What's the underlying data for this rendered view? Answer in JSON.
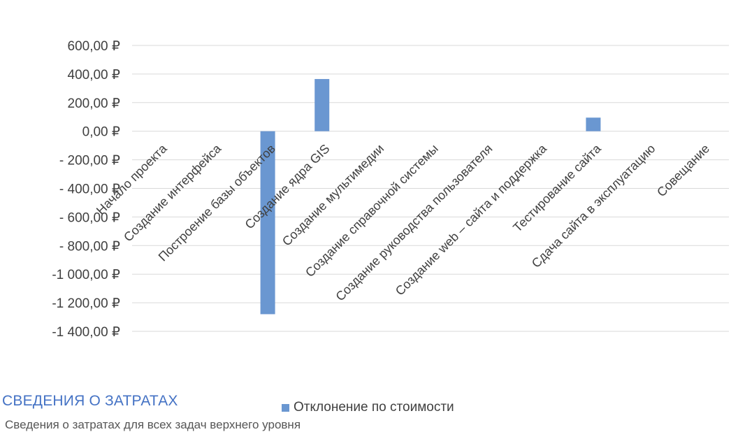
{
  "chart_data": {
    "type": "bar",
    "categories": [
      "Начало проекта",
      "Создание интерфейса",
      "Построение базы объектов",
      "Создание ядра GIS",
      "Создание мультимедии",
      "Создание справочной системы",
      "Создание руководства пользователя",
      "Создание web – сайта и поддержка",
      "Тестирование сайта",
      "Сдача сайта в эксплуатацию",
      "Совещание"
    ],
    "series": [
      {
        "name": "Отклонение по стоимости",
        "color": "#6A97D1",
        "values": [
          0,
          0,
          -1280,
          365,
          0,
          0,
          0,
          0,
          95,
          0,
          0
        ]
      }
    ],
    "ylim": [
      -1400,
      600
    ],
    "yticks": [
      600,
      400,
      200,
      0,
      -200,
      -400,
      -600,
      -800,
      -1000,
      -1200,
      -1400
    ],
    "ytick_labels": [
      "600,00 ₽",
      "400,00 ₽",
      "200,00 ₽",
      "0,00 ₽",
      "- 200,00 ₽",
      "- 400,00 ₽",
      "- 600,00 ₽",
      "- 800,00 ₽",
      "-1 000,00 ₽",
      "-1 200,00 ₽",
      "-1 400,00 ₽"
    ],
    "grid": true,
    "legend": "bottom",
    "title": "",
    "xlabel": "",
    "ylabel": ""
  },
  "section": {
    "title": "СВЕДЕНИЯ О ЗАТРАТАХ",
    "subtitle": "Сведения о затратах для всех задач верхнего уровня"
  }
}
